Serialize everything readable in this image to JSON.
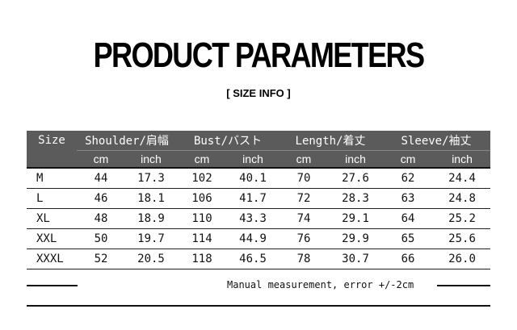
{
  "title": "PRODUCT PARAMETERS",
  "subtitle": "[ SIZE INFO ]",
  "table": {
    "size_header": "Size",
    "groups": [
      "Shoulder/肩幅",
      "Bust/バスト",
      "Length/着丈",
      "Sleeve/袖丈"
    ],
    "units": [
      "cm",
      "inch",
      "cm",
      "inch",
      "cm",
      "inch",
      "cm",
      "inch"
    ],
    "rows": [
      [
        "M",
        "44",
        "17.3",
        "102",
        "40.1",
        "70",
        "27.6",
        "62",
        "24.4"
      ],
      [
        "L",
        "46",
        "18.1",
        "106",
        "41.7",
        "72",
        "28.3",
        "63",
        "24.8"
      ],
      [
        "XL",
        "48",
        "18.9",
        "110",
        "43.3",
        "74",
        "29.1",
        "64",
        "25.2"
      ],
      [
        "XXL",
        "50",
        "19.7",
        "114",
        "44.9",
        "76",
        "29.9",
        "65",
        "25.6"
      ],
      [
        "XXXL",
        "52",
        "20.5",
        "118",
        "46.5",
        "78",
        "30.7",
        "66",
        "26.0"
      ]
    ]
  },
  "note": "Manual measurement, error +/-2cm"
}
